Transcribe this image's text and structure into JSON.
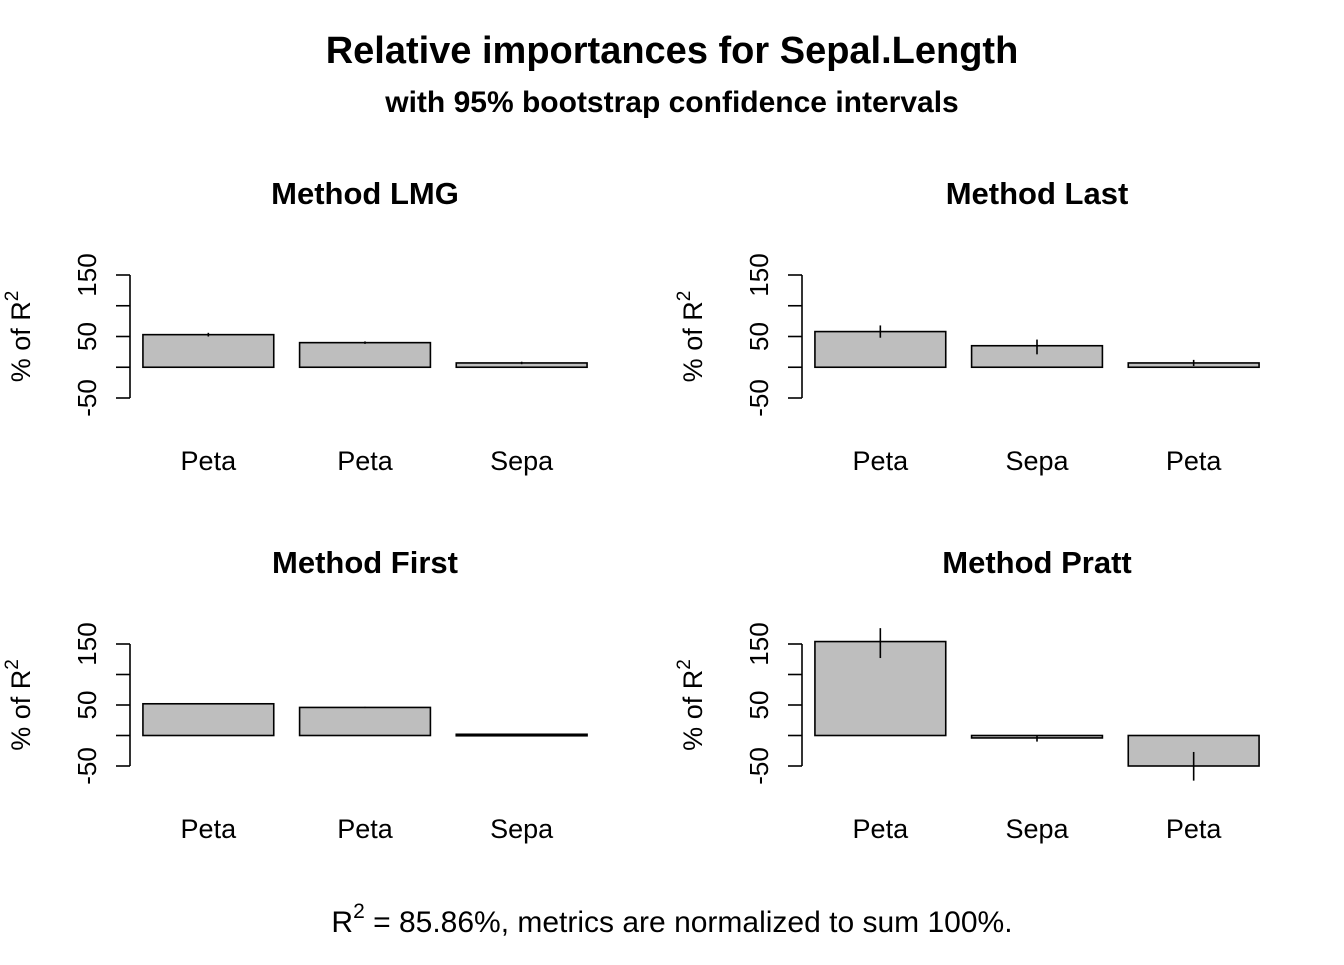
{
  "main_title": "Relative importances for Sepal.Length",
  "subtitle": "with 95% bootstrap confidence intervals",
  "footer": {
    "r_label": "R",
    "r_sup": "2",
    "text": " = 85.86%, metrics are normalized to sum 100%."
  },
  "colors": {
    "bar_fill": "#bebebe",
    "bar_stroke": "#000000",
    "axis": "#000000"
  },
  "chart_data": [
    {
      "type": "bar",
      "title": "Method LMG",
      "ylabel": "% of R",
      "ylabel_sup": "2",
      "ylim": [
        -50,
        150
      ],
      "yticks": [
        -50,
        50,
        150
      ],
      "categories": [
        "Peta",
        "Peta",
        "Sepa"
      ],
      "values": [
        53,
        40,
        7
      ],
      "ci": [
        [
          50,
          56
        ],
        [
          38,
          42
        ],
        [
          5,
          9
        ]
      ],
      "grid": false
    },
    {
      "type": "bar",
      "title": "Method Last",
      "ylabel": "% of R",
      "ylabel_sup": "2",
      "ylim": [
        -50,
        150
      ],
      "yticks": [
        -50,
        50,
        150
      ],
      "categories": [
        "Peta",
        "Sepa",
        "Peta"
      ],
      "values": [
        58,
        35,
        7
      ],
      "ci": [
        [
          48,
          68
        ],
        [
          21,
          45
        ],
        [
          2,
          12
        ]
      ],
      "grid": false
    },
    {
      "type": "bar",
      "title": "Method First",
      "ylabel": "% of R",
      "ylabel_sup": "2",
      "ylim": [
        -50,
        150
      ],
      "yticks": [
        -50,
        50,
        150
      ],
      "categories": [
        "Peta",
        "Peta",
        "Sepa"
      ],
      "values": [
        52,
        46,
        2
      ],
      "ci": [
        [
          51,
          53
        ],
        [
          45,
          47
        ],
        [
          1,
          3
        ]
      ],
      "grid": false
    },
    {
      "type": "bar",
      "title": "Method Pratt",
      "ylabel": "% of R",
      "ylabel_sup": "2",
      "ylim": [
        -50,
        150
      ],
      "yticks": [
        -50,
        50,
        150
      ],
      "categories": [
        "Peta",
        "Sepa",
        "Peta"
      ],
      "values": [
        154,
        -4,
        -50
      ],
      "ci": [
        [
          127,
          176
        ],
        [
          -10,
          0
        ],
        [
          -74,
          -27
        ]
      ],
      "grid": false
    }
  ]
}
